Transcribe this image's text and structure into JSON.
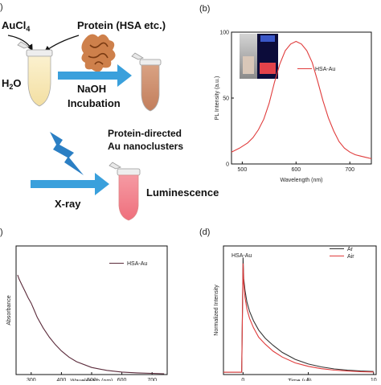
{
  "panel_labels": {
    "a": ")",
    "b": "(b)",
    "c": ")",
    "d": "(d)"
  },
  "schematic": {
    "aucl4": "AuCl",
    "aucl4_sub": "4",
    "protein": "Protein (HSA etc.)",
    "h2o": "H",
    "h2o_sub": "2",
    "h2o_tail": "O",
    "naoh": "NaOH",
    "incubation": "Incubation",
    "product_line1": "Protein-directed",
    "product_line2": "Au nanoclusters",
    "xray": "X-ray",
    "luminescence": "Luminescence",
    "colors": {
      "tube_start": "#f6e7b8",
      "tube_mid": "#c98c6a",
      "tube_end": "#f07a86",
      "arrow": "#3aa0dc",
      "bolt": "#2b7fc4"
    }
  },
  "chart_data": [
    {
      "type": "line",
      "panel": "b",
      "xlabel": "Wavelength (nm)",
      "ylabel": "PL Intensity (a.u.)",
      "xlim": [
        480,
        740
      ],
      "ylim": [
        0,
        100
      ],
      "xticks": [
        500,
        600,
        700
      ],
      "yticks": [
        0,
        50,
        100
      ],
      "legend_position": "top-right",
      "series": [
        {
          "name": "HSA-Au",
          "color": "#e03c3c",
          "x": [
            480,
            495,
            510,
            520,
            530,
            540,
            550,
            560,
            570,
            580,
            590,
            600,
            610,
            620,
            630,
            640,
            650,
            660,
            670,
            680,
            690,
            700,
            710,
            720,
            730,
            740
          ],
          "y": [
            9,
            12,
            16,
            20,
            26,
            34,
            46,
            62,
            76,
            86,
            91,
            93,
            91,
            86,
            77,
            63,
            48,
            35,
            25,
            17,
            12,
            9,
            7,
            6,
            5,
            4
          ]
        }
      ]
    },
    {
      "type": "line",
      "panel": "c",
      "xlabel": "Wavelength (nm)",
      "ylabel": "Absorbance",
      "xlim": [
        250,
        750
      ],
      "xticks": [
        300,
        400,
        500,
        600,
        700
      ],
      "legend_position": "top-right",
      "series": [
        {
          "name": "HSA-Au",
          "color": "#5a2a3a",
          "x": [
            255,
            260,
            270,
            280,
            290,
            300,
            310,
            320,
            340,
            360,
            380,
            400,
            425,
            450,
            500,
            550,
            600,
            650,
            700,
            740
          ],
          "y": [
            2.4,
            2.3,
            2.15,
            2.0,
            1.85,
            1.72,
            1.55,
            1.38,
            1.12,
            0.9,
            0.72,
            0.57,
            0.42,
            0.31,
            0.17,
            0.1,
            0.06,
            0.04,
            0.03,
            0.02
          ]
        }
      ]
    },
    {
      "type": "line",
      "panel": "d",
      "annotation": "HSA-Au",
      "xlabel": "Time (μs)",
      "ylabel": "Normalized Intensity",
      "xlim": [
        -1.5,
        10.2
      ],
      "xticks": [
        0,
        5,
        10
      ],
      "legend_position": "top-right",
      "series": [
        {
          "name": "Ar",
          "color": "#333333",
          "x": [
            -1.5,
            -0.1,
            0,
            0.05,
            0.15,
            0.3,
            0.5,
            0.8,
            1.2,
            1.7,
            2.3,
            3,
            4,
            5,
            6,
            7,
            8,
            9,
            10
          ],
          "y": [
            0.02,
            0.02,
            1.0,
            0.82,
            0.72,
            0.62,
            0.54,
            0.46,
            0.38,
            0.31,
            0.25,
            0.19,
            0.13,
            0.09,
            0.065,
            0.048,
            0.037,
            0.03,
            0.026
          ]
        },
        {
          "name": "Air",
          "color": "#e03c3c",
          "x": [
            -1.5,
            -0.1,
            0,
            0.05,
            0.15,
            0.3,
            0.5,
            0.8,
            1.2,
            1.7,
            2.3,
            3,
            4,
            5,
            6,
            7,
            8,
            9,
            10
          ],
          "y": [
            0.02,
            0.02,
            0.95,
            0.78,
            0.66,
            0.56,
            0.48,
            0.4,
            0.32,
            0.26,
            0.2,
            0.15,
            0.1,
            0.07,
            0.05,
            0.038,
            0.03,
            0.025,
            0.022
          ]
        }
      ]
    }
  ]
}
